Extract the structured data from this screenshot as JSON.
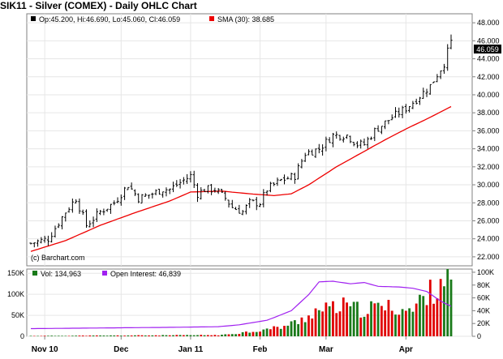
{
  "chart_data": [
    {
      "type": "ohlc",
      "title": "SIK11 - Silver (COMEX) - Daily OHLC Chart",
      "legend": {
        "ohlc_label": "Op:45.200, Hi:46.690, Lo:45.060, Cl:46.059",
        "sma_label": "SMA (30): 38.685"
      },
      "last_price_label": "46.059",
      "watermark": "(c) Barchart.com",
      "y_axis_side": "right",
      "ylim": [
        21,
        49
      ],
      "yticks": [
        22,
        24,
        26,
        28,
        30,
        32,
        34,
        36,
        38,
        40,
        42,
        44,
        46,
        48
      ],
      "ytick_labels": [
        "22.000",
        "24.000",
        "26.000",
        "28.000",
        "30.000",
        "32.000",
        "34.000",
        "36.000",
        "38.000",
        "40.000",
        "42.000",
        "44.000",
        "46.000",
        "48.000"
      ],
      "xticks": [
        {
          "label": "Nov 10",
          "index": 4
        },
        {
          "label": "Dec",
          "index": 26
        },
        {
          "label": "Jan 11",
          "index": 46
        },
        {
          "label": "Feb",
          "index": 66
        },
        {
          "label": "Mar",
          "index": 85
        },
        {
          "label": "Apr",
          "index": 108
        }
      ],
      "x_count": 122,
      "ohlc_keypoints": [
        [
          0,
          23.5
        ],
        [
          5,
          24.0
        ],
        [
          10,
          27.0
        ],
        [
          13,
          28.5
        ],
        [
          16,
          25.5
        ],
        [
          20,
          27.0
        ],
        [
          24,
          28.0
        ],
        [
          28,
          30.0
        ],
        [
          31,
          28.5
        ],
        [
          35,
          29.0
        ],
        [
          38,
          29.5
        ],
        [
          40,
          29.5
        ],
        [
          44,
          30.5
        ],
        [
          46,
          31.0
        ],
        [
          48,
          29.0
        ],
        [
          50,
          29.5
        ],
        [
          53,
          29.5
        ],
        [
          56,
          28.5
        ],
        [
          58,
          27.5
        ],
        [
          61,
          27.0
        ],
        [
          63,
          28.0
        ],
        [
          66,
          28.0
        ],
        [
          68,
          29.5
        ],
        [
          72,
          30.5
        ],
        [
          76,
          31.0
        ],
        [
          79,
          33.5
        ],
        [
          83,
          34.0
        ],
        [
          87,
          35.5
        ],
        [
          91,
          35.5
        ],
        [
          94,
          34.5
        ],
        [
          96,
          34.5
        ],
        [
          99,
          36.0
        ],
        [
          104,
          37.5
        ],
        [
          108,
          38.5
        ],
        [
          111,
          39.5
        ],
        [
          115,
          41.0
        ],
        [
          119,
          43.5
        ],
        [
          121,
          46.06
        ]
      ],
      "sma": [
        [
          0,
          22.6
        ],
        [
          10,
          23.8
        ],
        [
          20,
          25.5
        ],
        [
          30,
          26.9
        ],
        [
          40,
          28.2
        ],
        [
          46,
          29.2
        ],
        [
          55,
          29.3
        ],
        [
          63,
          29.0
        ],
        [
          70,
          28.8
        ],
        [
          75,
          29.0
        ],
        [
          80,
          30.0
        ],
        [
          88,
          32.0
        ],
        [
          95,
          33.5
        ],
        [
          102,
          35.0
        ],
        [
          108,
          36.2
        ],
        [
          115,
          37.5
        ],
        [
          121,
          38.69
        ]
      ],
      "series": [
        {
          "name": "OHLC",
          "color": "#000000"
        },
        {
          "name": "SMA (30)",
          "color": "#ee0000"
        }
      ]
    },
    {
      "type": "bar",
      "legend": {
        "vol_label": "Vol: 134,963",
        "oi_label": "Open Interest: 46,839"
      },
      "left_axis": {
        "ylim": [
          0,
          160000
        ],
        "ticks": [
          0,
          50000,
          100000,
          150000
        ],
        "labels": [
          "0",
          "50K",
          "100K",
          "150K"
        ]
      },
      "right_axis": {
        "ylim": [
          0,
          105000
        ],
        "ticks": [
          0,
          20000,
          40000,
          60000,
          80000,
          100000
        ],
        "labels": [
          "0",
          "20K",
          "40K",
          "60K",
          "80K",
          "100K"
        ]
      },
      "volume_keypoints": [
        [
          0,
          1000
        ],
        [
          55,
          3000
        ],
        [
          60,
          8000
        ],
        [
          66,
          14000
        ],
        [
          72,
          22000
        ],
        [
          77,
          35000
        ],
        [
          82,
          60000
        ],
        [
          86,
          65000
        ],
        [
          90,
          72000
        ],
        [
          95,
          62000
        ],
        [
          100,
          70000
        ],
        [
          105,
          68000
        ],
        [
          110,
          60000
        ],
        [
          113,
          95000
        ],
        [
          116,
          110000
        ],
        [
          118,
          140000
        ],
        [
          121,
          135000
        ]
      ],
      "up_color": "#1a7a1a",
      "down_color": "#e00000",
      "open_interest": [
        [
          0,
          12000
        ],
        [
          20,
          13000
        ],
        [
          40,
          14000
        ],
        [
          54,
          15000
        ],
        [
          60,
          18000
        ],
        [
          68,
          25000
        ],
        [
          75,
          40000
        ],
        [
          80,
          65000
        ],
        [
          83,
          85000
        ],
        [
          87,
          86000
        ],
        [
          92,
          82000
        ],
        [
          96,
          84000
        ],
        [
          100,
          78000
        ],
        [
          106,
          77000
        ],
        [
          110,
          75000
        ],
        [
          114,
          70000
        ],
        [
          118,
          55000
        ],
        [
          121,
          46839
        ]
      ],
      "oi_color": "#a020f0"
    }
  ]
}
